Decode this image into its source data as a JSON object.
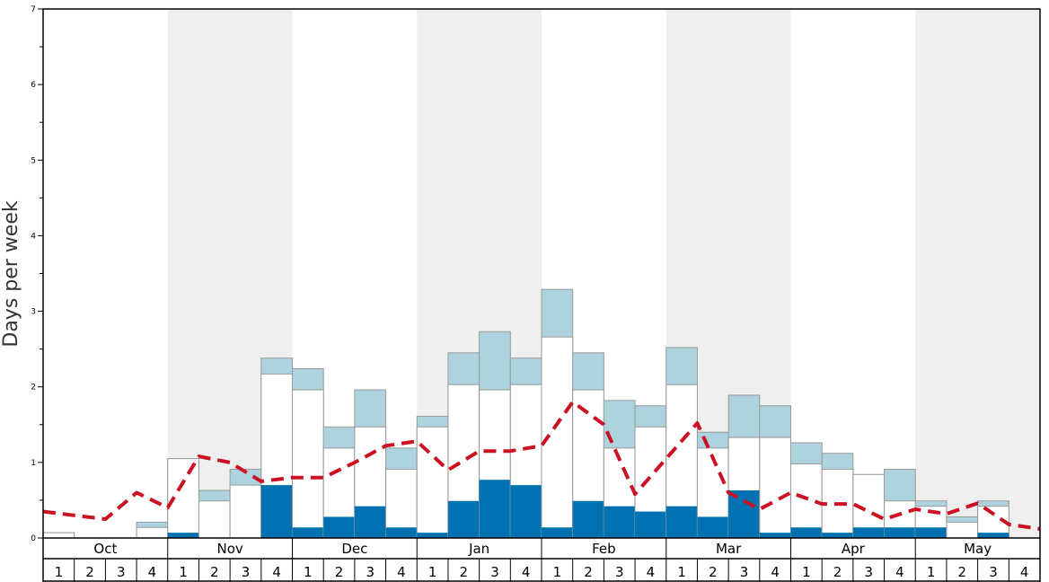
{
  "chart_data": {
    "type": "bar",
    "ylabel": "Days per week",
    "xlabel": "",
    "ylim": [
      0,
      7
    ],
    "yticks": [
      "0",
      "1",
      "2",
      "3",
      "4",
      "5",
      "6",
      "7"
    ],
    "months": [
      "Oct",
      "Nov",
      "Dec",
      "Jan",
      "Feb",
      "Mar",
      "Apr",
      "May"
    ],
    "weeks": [
      "1",
      "2",
      "3",
      "4"
    ],
    "shaded_months": [
      "Nov",
      "Jan",
      "Mar",
      "May"
    ],
    "colors": {
      "dark": "#0072b2",
      "white": "#ffffff",
      "light": "#add3df",
      "line": "#cc1122",
      "shade": "#efefef"
    },
    "series": [
      {
        "values": [
          0,
          0,
          0,
          0,
          0.07,
          0,
          0,
          0.7,
          0.14,
          0.28,
          0.42,
          0.14,
          0.07,
          0.49,
          0.77,
          0.7,
          0.14,
          0.49,
          0.42,
          0.35,
          0.42,
          0.28,
          0.63,
          0.07,
          0.14,
          0.07,
          0.14,
          0.14,
          0.14,
          0,
          0.07,
          0
        ]
      },
      {
        "values": [
          0.07,
          0,
          0,
          0.14,
          1.05,
          0.49,
          0.7,
          2.17,
          1.96,
          1.19,
          1.47,
          0.91,
          1.47,
          2.03,
          1.96,
          2.03,
          2.66,
          1.96,
          1.19,
          1.47,
          2.03,
          1.19,
          1.33,
          1.33,
          0.98,
          0.91,
          0.84,
          0.49,
          0.42,
          0.21,
          0.42,
          0
        ]
      },
      {
        "values": [
          0.07,
          0,
          0,
          0.21,
          1.05,
          0.63,
          0.91,
          2.38,
          2.24,
          1.47,
          1.96,
          1.19,
          1.61,
          2.45,
          2.73,
          2.38,
          3.29,
          2.45,
          1.82,
          1.75,
          2.52,
          1.4,
          1.89,
          1.75,
          1.26,
          1.12,
          0.84,
          0.91,
          0.49,
          0.28,
          0.49,
          0
        ]
      },
      {
        "values": [
          0.35,
          0.3,
          0.25,
          0.6,
          0.4,
          1.08,
          1.0,
          0.75,
          0.8,
          0.8,
          1.0,
          1.22,
          1.28,
          0.9,
          1.15,
          1.15,
          1.22,
          1.8,
          1.5,
          0.58,
          1.05,
          1.52,
          0.6,
          0.38,
          0.6,
          0.45,
          0.45,
          0.25,
          0.38,
          0.32,
          0.46,
          0.18,
          0.12
        ]
      }
    ]
  }
}
